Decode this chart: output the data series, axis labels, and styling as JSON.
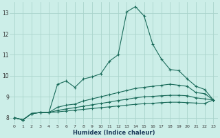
{
  "xlabel": "Humidex (Indice chaleur)",
  "bg_color": "#cceee8",
  "grid_color": "#aad4cc",
  "line_color": "#1a6b5a",
  "xlim": [
    -0.5,
    23.5
  ],
  "ylim": [
    7.7,
    13.5
  ],
  "xticks": [
    0,
    1,
    2,
    3,
    4,
    5,
    6,
    7,
    8,
    9,
    10,
    11,
    12,
    13,
    14,
    15,
    16,
    17,
    18,
    19,
    20,
    21,
    22,
    23
  ],
  "yticks": [
    8,
    9,
    10,
    11,
    12,
    13
  ],
  "lines": [
    {
      "x": [
        0,
        1,
        2,
        3,
        4,
        5,
        6,
        7,
        8,
        9,
        10,
        11,
        12,
        13,
        14,
        15,
        16,
        17,
        18,
        19,
        20,
        21,
        22,
        23
      ],
      "y": [
        8.0,
        7.9,
        8.2,
        8.25,
        8.25,
        9.6,
        9.75,
        9.45,
        9.85,
        9.95,
        10.1,
        10.7,
        11.0,
        13.05,
        13.3,
        12.85,
        11.5,
        10.8,
        10.3,
        10.25,
        9.85,
        9.5,
        9.35,
        8.85
      ]
    },
    {
      "x": [
        0,
        1,
        2,
        3,
        4,
        5,
        6,
        7,
        8,
        9,
        10,
        11,
        12,
        13,
        14,
        15,
        16,
        17,
        18,
        19,
        20,
        21,
        22,
        23
      ],
      "y": [
        8.0,
        7.9,
        8.2,
        8.25,
        8.25,
        8.5,
        8.6,
        8.65,
        8.8,
        8.9,
        9.0,
        9.1,
        9.2,
        9.3,
        9.4,
        9.45,
        9.5,
        9.55,
        9.6,
        9.55,
        9.5,
        9.2,
        9.15,
        8.85
      ]
    },
    {
      "x": [
        0,
        1,
        2,
        3,
        4,
        5,
        6,
        7,
        8,
        9,
        10,
        11,
        12,
        13,
        14,
        15,
        16,
        17,
        18,
        19,
        20,
        21,
        22,
        23
      ],
      "y": [
        8.0,
        7.9,
        8.2,
        8.25,
        8.25,
        8.35,
        8.42,
        8.48,
        8.55,
        8.62,
        8.68,
        8.75,
        8.82,
        8.88,
        8.95,
        9.0,
        9.02,
        9.05,
        9.07,
        9.07,
        9.05,
        8.95,
        8.9,
        8.85
      ]
    },
    {
      "x": [
        0,
        1,
        2,
        3,
        4,
        5,
        6,
        7,
        8,
        9,
        10,
        11,
        12,
        13,
        14,
        15,
        16,
        17,
        18,
        19,
        20,
        21,
        22,
        23
      ],
      "y": [
        8.0,
        7.9,
        8.2,
        8.25,
        8.25,
        8.28,
        8.32,
        8.36,
        8.4,
        8.44,
        8.48,
        8.52,
        8.56,
        8.6,
        8.64,
        8.67,
        8.69,
        8.72,
        8.74,
        8.74,
        8.72,
        8.7,
        8.68,
        8.85
      ]
    }
  ]
}
